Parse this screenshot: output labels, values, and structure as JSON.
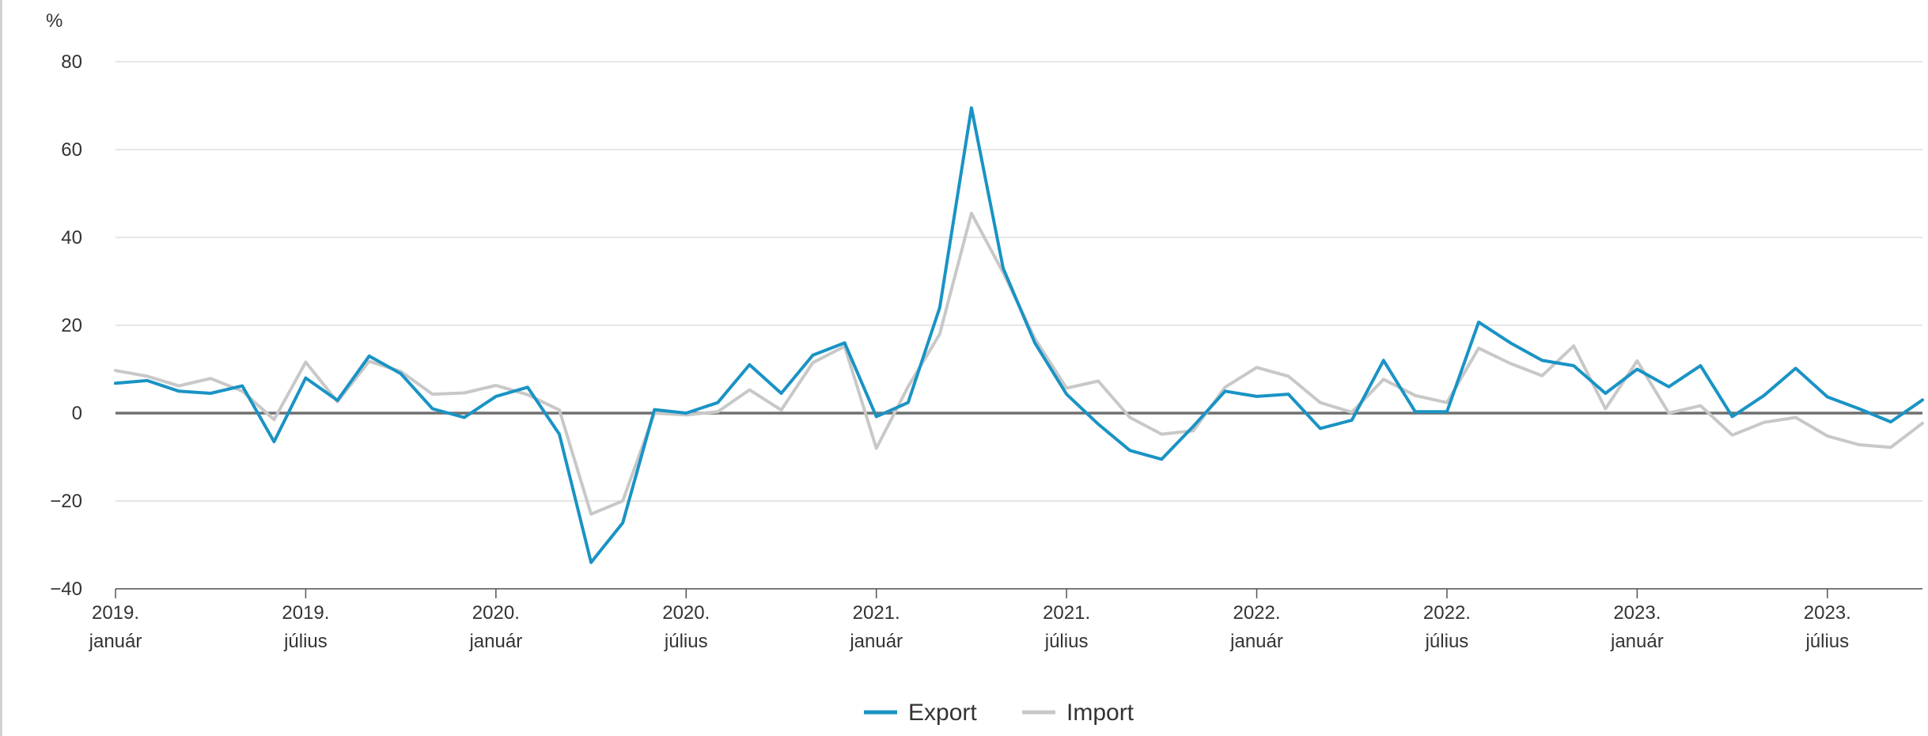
{
  "chart_data": {
    "type": "line",
    "yunit": "%",
    "ylim": [
      -40,
      80
    ],
    "yticks": [
      -40,
      -20,
      0,
      20,
      40,
      60,
      80
    ],
    "grid": true,
    "legend_position": "bottom-center",
    "x": [
      "2019-01",
      "2019-02",
      "2019-03",
      "2019-04",
      "2019-05",
      "2019-06",
      "2019-07",
      "2019-08",
      "2019-09",
      "2019-10",
      "2019-11",
      "2019-12",
      "2020-01",
      "2020-02",
      "2020-03",
      "2020-04",
      "2020-05",
      "2020-06",
      "2020-07",
      "2020-08",
      "2020-09",
      "2020-10",
      "2020-11",
      "2020-12",
      "2021-01",
      "2021-02",
      "2021-03",
      "2021-04",
      "2021-05",
      "2021-06",
      "2021-07",
      "2021-08",
      "2021-09",
      "2021-10",
      "2021-11",
      "2021-12",
      "2022-01",
      "2022-02",
      "2022-03",
      "2022-04",
      "2022-05",
      "2022-06",
      "2022-07",
      "2022-08",
      "2022-09",
      "2022-10",
      "2022-11",
      "2022-12",
      "2023-01",
      "2023-02",
      "2023-03",
      "2023-04",
      "2023-05",
      "2023-06",
      "2023-07",
      "2023-08",
      "2023-09",
      "2023-10"
    ],
    "xticks": [
      {
        "x": "2019-01",
        "line1": "2019.",
        "line2": "január"
      },
      {
        "x": "2019-07",
        "line1": "2019.",
        "line2": "július"
      },
      {
        "x": "2020-01",
        "line1": "2020.",
        "line2": "január"
      },
      {
        "x": "2020-07",
        "line1": "2020.",
        "line2": "július"
      },
      {
        "x": "2021-01",
        "line1": "2021.",
        "line2": "január"
      },
      {
        "x": "2021-07",
        "line1": "2021.",
        "line2": "július"
      },
      {
        "x": "2022-01",
        "line1": "2022.",
        "line2": "január"
      },
      {
        "x": "2022-07",
        "line1": "2022.",
        "line2": "július"
      },
      {
        "x": "2023-01",
        "line1": "2023.",
        "line2": "január"
      },
      {
        "x": "2023-07",
        "line1": "2023.",
        "line2": "július"
      }
    ],
    "series": [
      {
        "name": "Export",
        "color": "#1a93c4",
        "values": [
          6.8,
          7.4,
          5.0,
          4.5,
          6.2,
          -6.5,
          8.0,
          2.9,
          13.0,
          9.0,
          1.0,
          -1.0,
          3.8,
          5.9,
          -4.8,
          -34.0,
          -25.0,
          0.8,
          0.0,
          2.4,
          11.0,
          4.5,
          13.2,
          16.0,
          -0.8,
          2.4,
          24.0,
          69.5,
          33.0,
          16.0,
          4.3,
          -2.5,
          -8.5,
          -10.5,
          -3.0,
          5.0,
          3.8,
          4.3,
          -3.5,
          -1.6,
          12.0,
          0.3,
          0.3,
          20.7,
          16.0,
          12.0,
          10.8,
          4.5,
          10.0,
          6.0,
          10.8,
          -0.8,
          4.0,
          10.2,
          3.7,
          1.0,
          -2.0,
          3.0
        ]
      },
      {
        "name": "Import",
        "color": "#c8c8c8",
        "values": [
          9.7,
          8.4,
          6.2,
          7.9,
          5.0,
          -1.5,
          11.6,
          2.6,
          11.8,
          9.5,
          4.3,
          4.6,
          6.3,
          4.2,
          0.7,
          -23.0,
          -20.0,
          0.0,
          -0.4,
          0.3,
          5.3,
          0.7,
          11.5,
          15.2,
          -8.0,
          6.0,
          18.0,
          45.5,
          32.0,
          17.0,
          5.7,
          7.3,
          -1.0,
          -4.8,
          -4.0,
          5.9,
          10.4,
          8.4,
          2.4,
          0.2,
          7.7,
          4.0,
          2.4,
          14.8,
          11.3,
          8.5,
          15.3,
          1.0,
          11.9,
          0.0,
          1.7,
          -5.0,
          -2.1,
          -1.0,
          -5.2,
          -7.2,
          -7.8,
          -2.3
        ]
      }
    ]
  }
}
